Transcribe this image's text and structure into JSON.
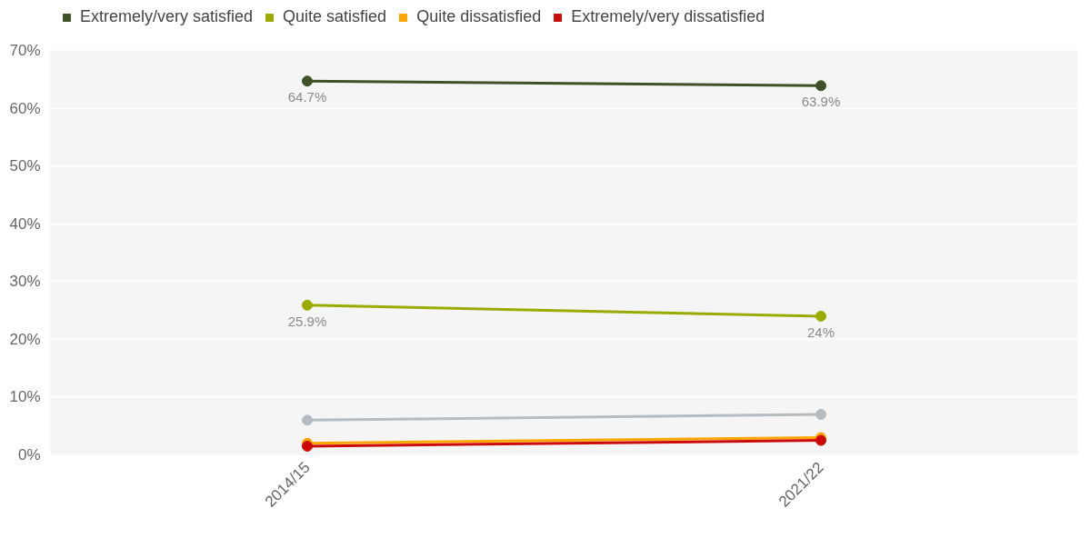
{
  "chart_data": {
    "type": "line",
    "categories": [
      "2014/15",
      "2021/22"
    ],
    "series": [
      {
        "name": "Extremely/very satisfied",
        "color": "#3f5127",
        "values": [
          64.7,
          63.9
        ],
        "value_labels": [
          "64.7%",
          "63.9%"
        ]
      },
      {
        "name": "Quite satisfied",
        "color": "#9aab00",
        "values": [
          25.9,
          24
        ],
        "value_labels": [
          "25.9%",
          "24%"
        ]
      },
      {
        "name": "Quite dissatisfied",
        "color": "#ffa500",
        "values": [
          2,
          3
        ]
      },
      {
        "name": "Extremely/very dissatisfied",
        "color": "#cc0a0a",
        "values": [
          1.5,
          2.5
        ]
      },
      {
        "name": null,
        "color": "#b4bcc2",
        "values": [
          6,
          7
        ]
      }
    ],
    "ylim": [
      0,
      70
    ],
    "yticks": [
      {
        "value": 0,
        "label": "0%"
      },
      {
        "value": 10,
        "label": "10%"
      },
      {
        "value": 20,
        "label": "20%"
      },
      {
        "value": 30,
        "label": "30%"
      },
      {
        "value": 40,
        "label": "40%"
      },
      {
        "value": 50,
        "label": "50%"
      },
      {
        "value": 60,
        "label": "60%"
      },
      {
        "value": 70,
        "label": "70%"
      }
    ],
    "grid": "y",
    "legend": "top left",
    "marker": "circle",
    "line_style": "solid"
  }
}
